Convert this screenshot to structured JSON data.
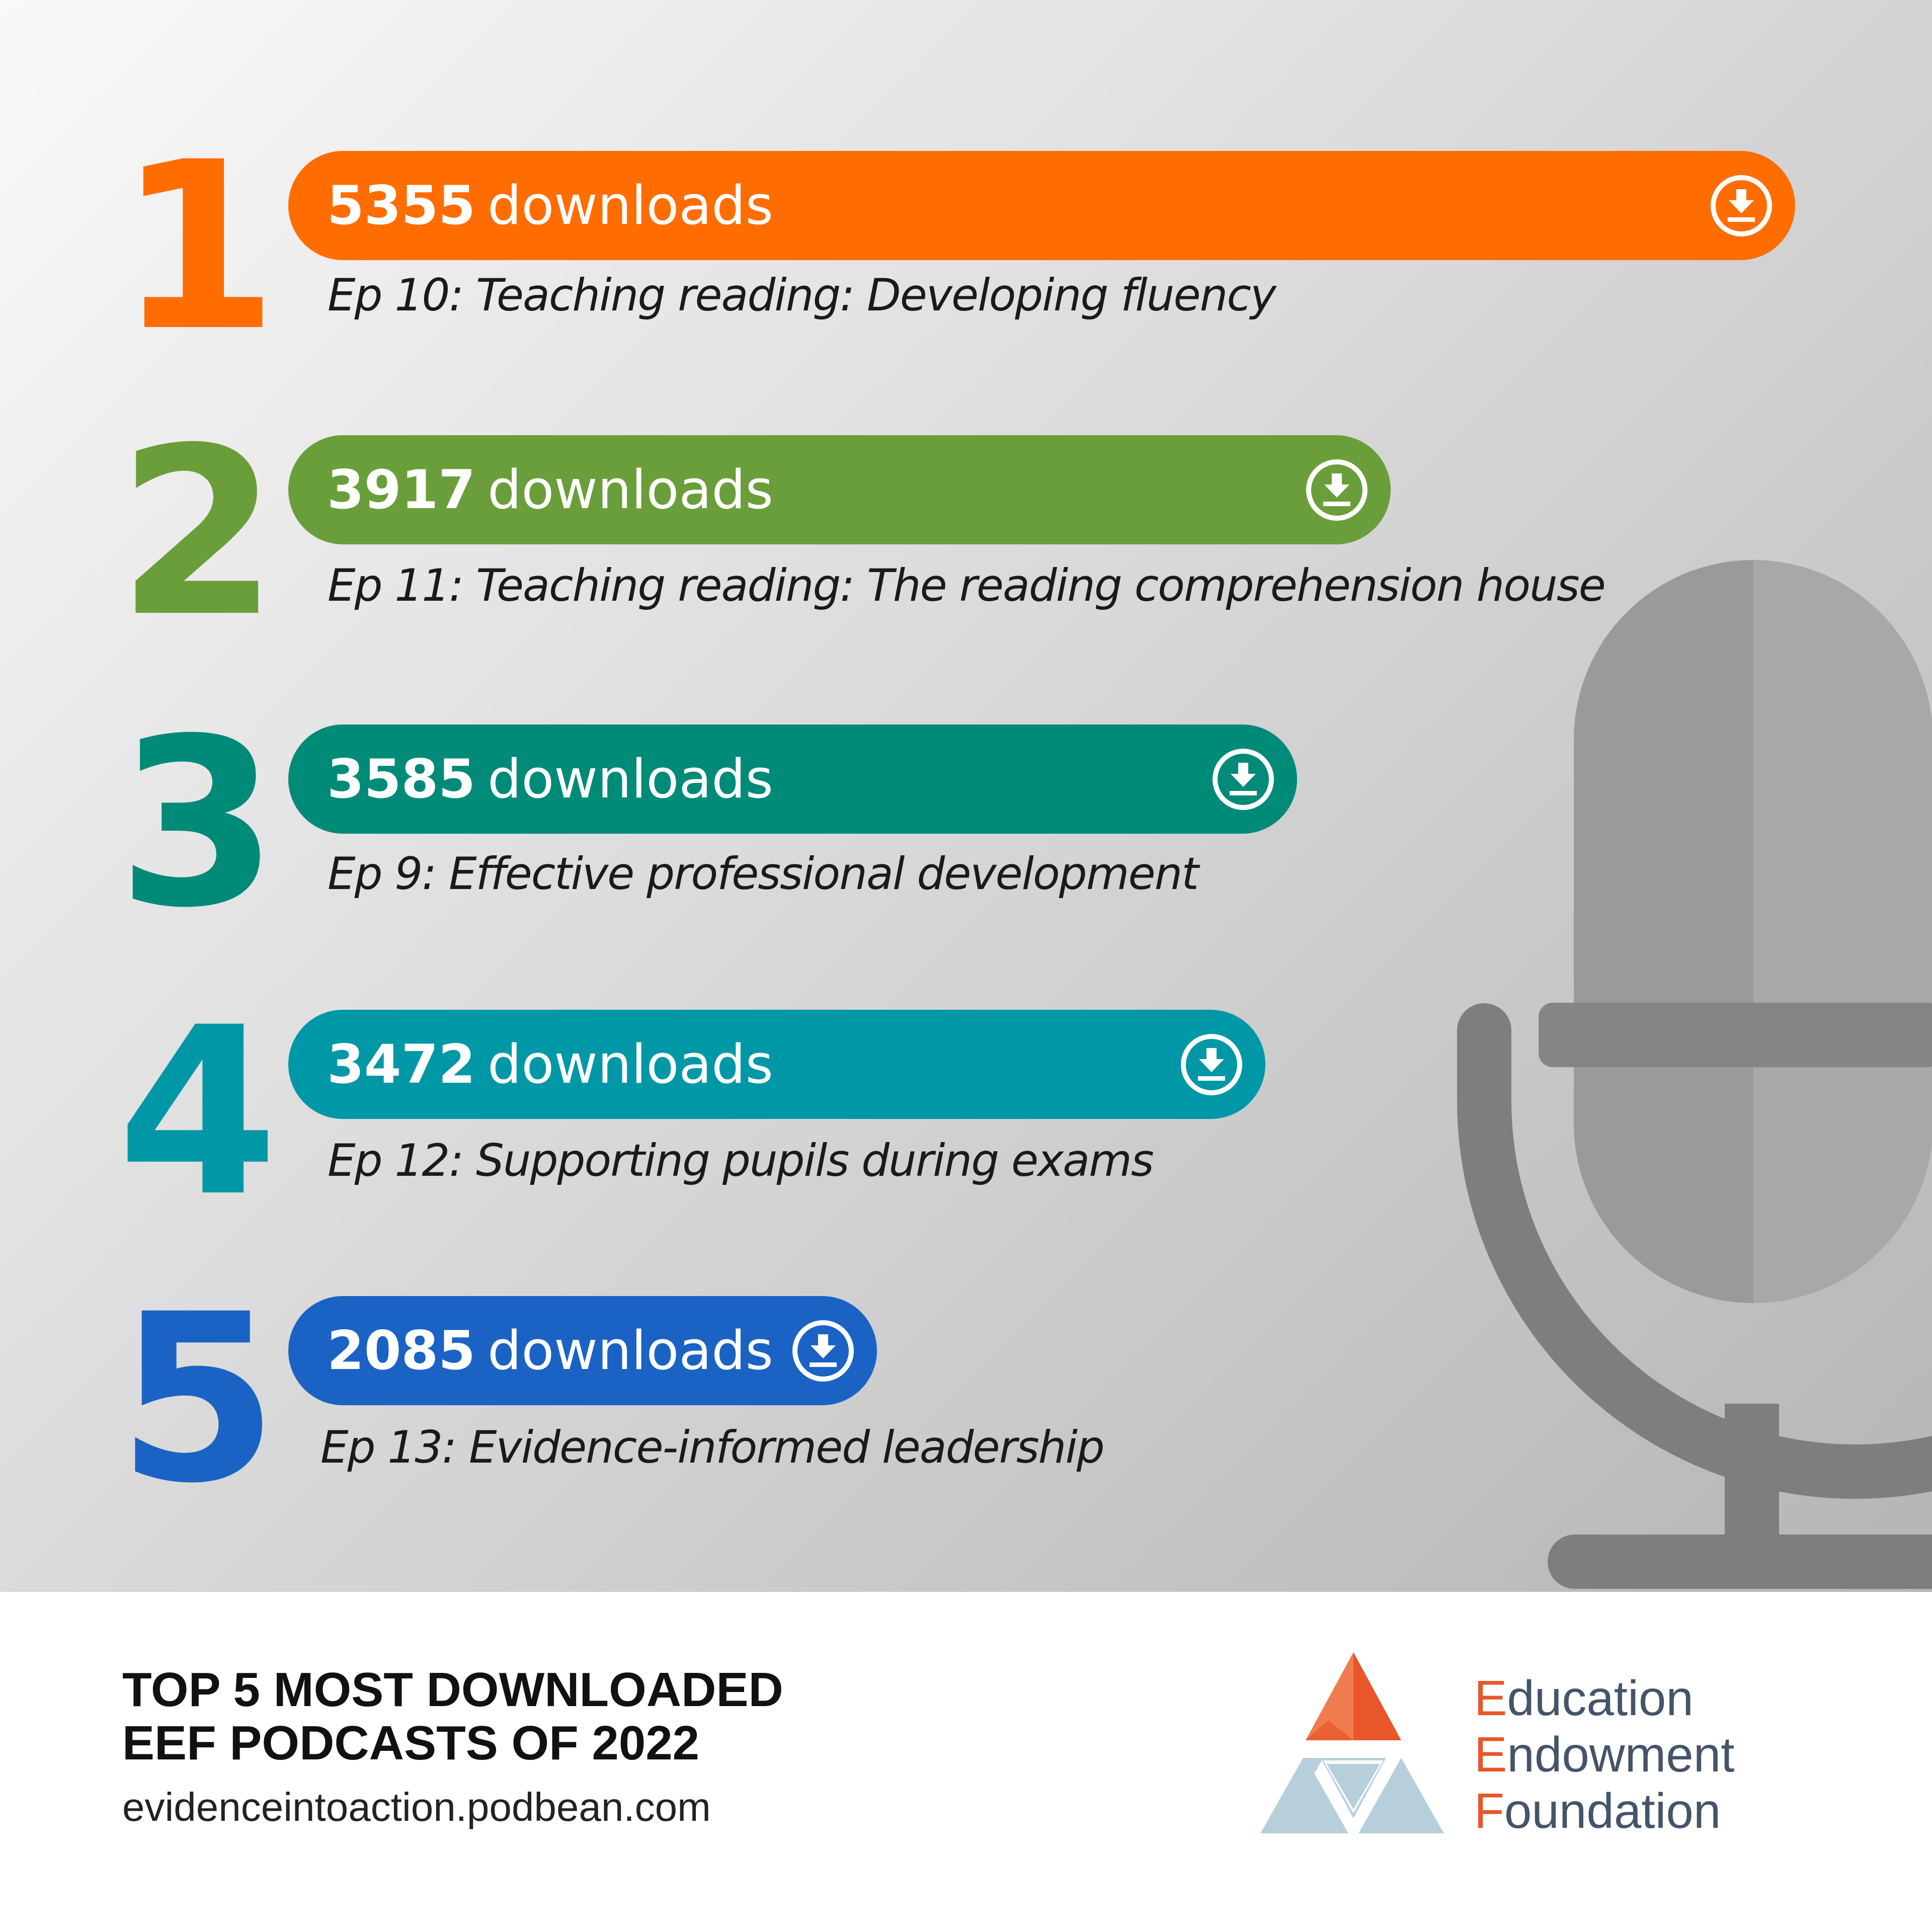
{
  "chart_data": {
    "type": "bar",
    "orientation": "horizontal",
    "categories": [
      "Ep 10: Teaching reading: Developing fluency",
      "Ep 11: Teaching reading: The reading comprehension house",
      "Ep 9: Effective professional development",
      "Ep 12: Supporting pupils during exams",
      "Ep 13: Evidence-informed leadership"
    ],
    "values": [
      5355,
      3917,
      3585,
      3472,
      2085
    ],
    "title": "",
    "xlabel": "",
    "ylabel": "",
    "grid": false,
    "legend": "none"
  },
  "items": [
    {
      "rank": "1",
      "count": "5355",
      "unit": "downloads",
      "title": "Ep 10: Teaching reading: Developing fluency",
      "color": "#ff6d00"
    },
    {
      "rank": "2",
      "count": "3917",
      "unit": "downloads",
      "title": "Ep 11: Teaching reading: The reading comprehension house",
      "color": "#6a9e3a"
    },
    {
      "rank": "3",
      "count": "3585",
      "unit": "downloads",
      "title": "Ep 9: Effective professional development",
      "color": "#008a78"
    },
    {
      "rank": "4",
      "count": "3472",
      "unit": "downloads",
      "title": "Ep 12: Supporting pupils during exams",
      "color": "#0097a7"
    },
    {
      "rank": "5",
      "count": "2085",
      "unit": "downloads",
      "title": "Ep 13: Evidence-informed leadership",
      "color": "#1a63c4"
    }
  ],
  "icons": {
    "download": "download-circle-icon",
    "background": "microphone-icon",
    "logo": "eef-triangle-logo"
  },
  "footer": {
    "title_line1": "TOP 5 MOST DOWNLOADED",
    "title_line2": "EEF PODCASTS OF 2022",
    "url": "evidenceintoaction.podbean.com"
  },
  "logo": {
    "line1_initial": "E",
    "line1_rest": "ducation",
    "line2_initial": "E",
    "line2_rest": "ndowment",
    "line3_initial": "F",
    "line3_rest": "oundation",
    "accent_color": "#e8562a",
    "text_color": "#44546a"
  }
}
